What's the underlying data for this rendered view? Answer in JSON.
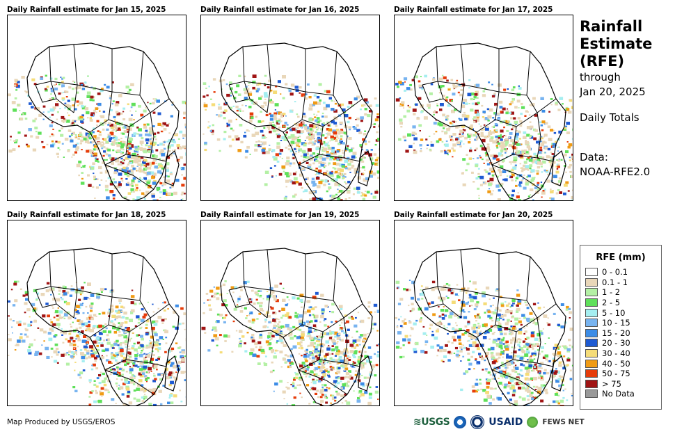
{
  "panels": [
    {
      "title": "Daily Rainfall estimate for Jan 15, 2025"
    },
    {
      "title": "Daily Rainfall estimate for Jan 16, 2025"
    },
    {
      "title": "Daily Rainfall estimate for Jan 17, 2025"
    },
    {
      "title": "Daily Rainfall estimate for Jan 18, 2025"
    },
    {
      "title": "Daily Rainfall estimate for Jan 19, 2025"
    },
    {
      "title": "Daily Rainfall estimate for Jan 20, 2025"
    }
  ],
  "side": {
    "line1": "Rainfall",
    "line2": "Estimate",
    "line3": "(RFE)",
    "line4": "through",
    "line5": "Jan 20, 2025",
    "line6": "Daily Totals",
    "line7": "Data:",
    "line8": "NOAA-RFE2.0"
  },
  "legend": {
    "title": "RFE (mm)",
    "items": [
      {
        "label": "0 - 0.1",
        "color": "#ffffff"
      },
      {
        "label": "0.1 - 1",
        "color": "#e9d7b9"
      },
      {
        "label": "1 - 2",
        "color": "#b4f0a5"
      },
      {
        "label": "2 - 5",
        "color": "#5fe05a"
      },
      {
        "label": "5 - 10",
        "color": "#a5eef0"
      },
      {
        "label": "10 - 15",
        "color": "#78b4f0"
      },
      {
        "label": "15 - 20",
        "color": "#3c8ce6"
      },
      {
        "label": "20 - 30",
        "color": "#1e5ad2"
      },
      {
        "label": "30 - 40",
        "color": "#f5dc78"
      },
      {
        "label": "40 - 50",
        "color": "#f09b14"
      },
      {
        "label": "50 - 75",
        "color": "#e63c0a"
      },
      {
        "label": "> 75",
        "color": "#a01414"
      },
      {
        "label": "No Data",
        "color": "#999999"
      }
    ]
  },
  "footer": {
    "credit": "Map Produced by USGS/EROS"
  },
  "logos": {
    "usgs": "≋USGS",
    "usaid": "USAID",
    "fews": "FEWS NET"
  }
}
